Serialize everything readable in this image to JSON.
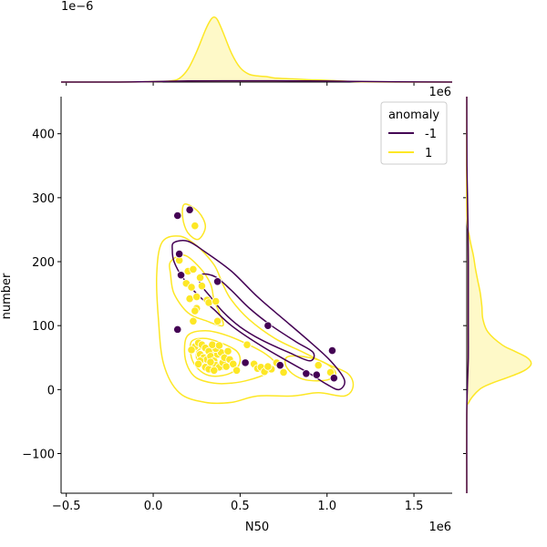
{
  "colors": {
    "anomaly_neg": "#440154",
    "anomaly_pos": "#fde725",
    "pos_fill": "#fde725",
    "neg_fill": "#440154"
  },
  "chart_data": {
    "type": "scatter",
    "title": "",
    "xlabel": "N50",
    "ylabel": "number",
    "x_offset_label": "1e6",
    "y_marginal_offset_label": "1e6",
    "x_marginal_offset_label": "1e−6",
    "xlim": [
      -0.53,
      1.72
    ],
    "ylim": [
      -162,
      458
    ],
    "xticks": [
      -0.5,
      0.0,
      0.5,
      1.0,
      1.5
    ],
    "xtick_labels": [
      "−0.5",
      "0.0",
      "0.5",
      "1.0",
      "1.5"
    ],
    "yticks": [
      -100,
      0,
      100,
      200,
      300,
      400
    ],
    "ytick_labels": [
      "−100",
      "0",
      "100",
      "200",
      "300",
      "400"
    ],
    "grid": false,
    "legend": {
      "title": "anomaly",
      "placement": "top-right",
      "entries": [
        "-1",
        "1"
      ]
    },
    "series": [
      {
        "name": "-1",
        "points": [
          [
            0.14,
            272
          ],
          [
            0.21,
            281
          ],
          [
            0.15,
            212
          ],
          [
            0.16,
            179
          ],
          [
            0.14,
            94
          ],
          [
            0.37,
            169
          ],
          [
            0.66,
            100
          ],
          [
            0.53,
            42
          ],
          [
            0.73,
            38
          ],
          [
            0.88,
            25
          ],
          [
            0.94,
            23
          ],
          [
            1.03,
            61
          ],
          [
            1.04,
            18
          ]
        ]
      },
      {
        "name": "1",
        "points": [
          [
            0.24,
            256
          ],
          [
            0.15,
            202
          ],
          [
            0.2,
            185
          ],
          [
            0.23,
            188
          ],
          [
            0.27,
            175
          ],
          [
            0.19,
            166
          ],
          [
            0.22,
            160
          ],
          [
            0.28,
            162
          ],
          [
            0.21,
            142
          ],
          [
            0.25,
            145
          ],
          [
            0.31,
            140
          ],
          [
            0.32,
            136
          ],
          [
            0.36,
            138
          ],
          [
            0.25,
            127
          ],
          [
            0.24,
            123
          ],
          [
            0.23,
            107
          ],
          [
            0.37,
            107
          ],
          [
            0.24,
            67
          ],
          [
            0.22,
            62
          ],
          [
            0.26,
            73
          ],
          [
            0.28,
            70
          ],
          [
            0.3,
            65
          ],
          [
            0.32,
            60
          ],
          [
            0.27,
            55
          ],
          [
            0.29,
            50
          ],
          [
            0.31,
            47
          ],
          [
            0.33,
            52
          ],
          [
            0.35,
            45
          ],
          [
            0.34,
            40
          ],
          [
            0.36,
            38
          ],
          [
            0.3,
            35
          ],
          [
            0.32,
            32
          ],
          [
            0.38,
            35
          ],
          [
            0.4,
            42
          ],
          [
            0.42,
            36
          ],
          [
            0.37,
            55
          ],
          [
            0.39,
            58
          ],
          [
            0.41,
            50
          ],
          [
            0.44,
            47
          ],
          [
            0.46,
            40
          ],
          [
            0.48,
            30
          ],
          [
            0.36,
            64
          ],
          [
            0.34,
            70
          ],
          [
            0.38,
            69
          ],
          [
            0.43,
            60
          ],
          [
            0.27,
            45
          ],
          [
            0.33,
            43
          ],
          [
            0.35,
            30
          ],
          [
            0.26,
            40
          ],
          [
            0.54,
            70
          ],
          [
            0.58,
            40
          ],
          [
            0.6,
            33
          ],
          [
            0.62,
            35
          ],
          [
            0.64,
            28
          ],
          [
            0.68,
            32
          ],
          [
            0.71,
            42
          ],
          [
            0.75,
            27
          ],
          [
            0.95,
            38
          ],
          [
            1.02,
            27
          ],
          [
            0.66,
            36
          ]
        ]
      }
    ],
    "marginal_x": {
      "series": [
        {
          "name": "1",
          "x": [
            -0.53,
            -0.2,
            0.0,
            0.1,
            0.15,
            0.2,
            0.25,
            0.3,
            0.33,
            0.35,
            0.37,
            0.4,
            0.45,
            0.5,
            0.55,
            0.6,
            0.65,
            0.7,
            0.8,
            0.9,
            1.0,
            1.1,
            1.2,
            1.4,
            1.72
          ],
          "density": [
            0.0,
            0.0,
            0.03,
            0.08,
            0.25,
            0.9,
            2.1,
            3.6,
            4.3,
            4.5,
            4.3,
            3.5,
            2.0,
            1.0,
            0.55,
            0.42,
            0.38,
            0.28,
            0.22,
            0.16,
            0.12,
            0.06,
            0.02,
            0.0,
            0.0
          ]
        },
        {
          "name": "-1",
          "x": [
            -0.53,
            -0.2,
            0.0,
            0.2,
            0.4,
            0.6,
            0.8,
            1.0,
            1.2,
            1.4,
            1.72
          ],
          "density": [
            0.0,
            0.0,
            0.03,
            0.08,
            0.09,
            0.09,
            0.08,
            0.07,
            0.04,
            0.01,
            0.0
          ]
        }
      ],
      "ylim": [
        0,
        4.8
      ]
    },
    "marginal_y": {
      "series": [
        {
          "name": "1",
          "y": [
            -162,
            -40,
            -20,
            0,
            10,
            20,
            30,
            40,
            50,
            60,
            70,
            90,
            110,
            130,
            150,
            170,
            190,
            210,
            240,
            280,
            458
          ],
          "density": [
            0.0,
            0.0,
            0.04,
            0.25,
            0.5,
            0.85,
            1.15,
            1.28,
            1.2,
            0.95,
            0.7,
            0.42,
            0.32,
            0.3,
            0.27,
            0.22,
            0.17,
            0.13,
            0.05,
            0.0,
            0.0
          ]
        },
        {
          "name": "-1",
          "y": [
            -162,
            -40,
            0,
            50,
            100,
            150,
            200,
            250,
            300,
            350,
            458
          ],
          "density": [
            0.0,
            0.0,
            0.01,
            0.03,
            0.03,
            0.03,
            0.03,
            0.025,
            0.015,
            0.004,
            0.0
          ]
        }
      ],
      "xlim": [
        0,
        1.45
      ]
    },
    "contours": {
      "series": [
        {
          "name": "-1",
          "levels": [
            [
              [
                0.12,
                230
              ],
              [
                0.2,
                232
              ],
              [
                0.3,
                215
              ],
              [
                0.45,
                185
              ],
              [
                0.6,
                145
              ],
              [
                0.75,
                110
              ],
              [
                0.9,
                75
              ],
              [
                1.02,
                45
              ],
              [
                1.1,
                15
              ],
              [
                1.07,
                0
              ],
              [
                1.0,
                8
              ],
              [
                0.9,
                25
              ],
              [
                0.75,
                48
              ],
              [
                0.6,
                72
              ],
              [
                0.45,
                100
              ],
              [
                0.35,
                125
              ],
              [
                0.25,
                150
              ],
              [
                0.17,
                175
              ],
              [
                0.12,
                200
              ],
              [
                0.11,
                218
              ],
              [
                0.12,
                230
              ]
            ],
            [
              [
                0.28,
                180
              ],
              [
                0.36,
                176
              ],
              [
                0.45,
                155
              ],
              [
                0.55,
                128
              ],
              [
                0.68,
                100
              ],
              [
                0.82,
                75
              ],
              [
                0.92,
                58
              ],
              [
                0.9,
                45
              ],
              [
                0.78,
                58
              ],
              [
                0.62,
                78
              ],
              [
                0.5,
                98
              ],
              [
                0.4,
                122
              ],
              [
                0.32,
                148
              ],
              [
                0.27,
                166
              ],
              [
                0.28,
                180
              ]
            ]
          ]
        },
        {
          "name": "1",
          "levels": [
            [
              [
                0.05,
                230
              ],
              [
                0.15,
                240
              ],
              [
                0.25,
                225
              ],
              [
                0.35,
                195
              ],
              [
                0.4,
                165
              ],
              [
                0.45,
                140
              ],
              [
                0.55,
                110
              ],
              [
                0.7,
                80
              ],
              [
                0.85,
                60
              ],
              [
                1.0,
                40
              ],
              [
                1.12,
                25
              ],
              [
                1.15,
                5
              ],
              [
                1.1,
                -10
              ],
              [
                0.95,
                -5
              ],
              [
                0.8,
                -10
              ],
              [
                0.6,
                -10
              ],
              [
                0.45,
                -20
              ],
              [
                0.3,
                -20
              ],
              [
                0.15,
                -5
              ],
              [
                0.06,
                40
              ],
              [
                0.03,
                110
              ],
              [
                0.02,
                180
              ],
              [
                0.05,
                230
              ]
            ],
            [
              [
                0.1,
                200
              ],
              [
                0.18,
                210
              ],
              [
                0.27,
                190
              ],
              [
                0.33,
                165
              ],
              [
                0.35,
                140
              ],
              [
                0.38,
                120
              ],
              [
                0.4,
                100
              ],
              [
                0.3,
                108
              ],
              [
                0.2,
                120
              ],
              [
                0.12,
                150
              ],
              [
                0.1,
                180
              ],
              [
                0.1,
                200
              ]
            ],
            [
              [
                0.18,
                290
              ],
              [
                0.26,
                278
              ],
              [
                0.3,
                255
              ],
              [
                0.26,
                235
              ],
              [
                0.2,
                245
              ],
              [
                0.17,
                268
              ],
              [
                0.18,
                290
              ]
            ],
            [
              [
                0.2,
                85
              ],
              [
                0.3,
                92
              ],
              [
                0.42,
                85
              ],
              [
                0.55,
                70
              ],
              [
                0.65,
                55
              ],
              [
                0.7,
                40
              ],
              [
                0.65,
                25
              ],
              [
                0.55,
                15
              ],
              [
                0.45,
                10
              ],
              [
                0.35,
                10
              ],
              [
                0.25,
                18
              ],
              [
                0.2,
                35
              ],
              [
                0.18,
                60
              ],
              [
                0.2,
                85
              ]
            ],
            [
              [
                0.22,
                75
              ],
              [
                0.3,
                80
              ],
              [
                0.4,
                72
              ],
              [
                0.48,
                60
              ],
              [
                0.5,
                45
              ],
              [
                0.47,
                30
              ],
              [
                0.4,
                22
              ],
              [
                0.32,
                22
              ],
              [
                0.26,
                32
              ],
              [
                0.22,
                50
              ],
              [
                0.22,
                75
              ]
            ],
            [
              [
                0.26,
                62
              ],
              [
                0.33,
                66
              ],
              [
                0.41,
                58
              ],
              [
                0.44,
                45
              ],
              [
                0.41,
                33
              ],
              [
                0.34,
                30
              ],
              [
                0.28,
                36
              ],
              [
                0.25,
                48
              ],
              [
                0.26,
                62
              ]
            ],
            [
              [
                0.3,
                55
              ],
              [
                0.36,
                57
              ],
              [
                0.4,
                48
              ],
              [
                0.38,
                38
              ],
              [
                0.32,
                37
              ],
              [
                0.29,
                45
              ],
              [
                0.3,
                55
              ]
            ],
            [
              [
                0.78,
                52
              ],
              [
                0.9,
                50
              ],
              [
                1.0,
                40
              ],
              [
                1.05,
                25
              ],
              [
                1.0,
                15
              ],
              [
                0.88,
                15
              ],
              [
                0.8,
                25
              ],
              [
                0.76,
                40
              ],
              [
                0.78,
                52
              ]
            ]
          ]
        }
      ]
    }
  }
}
